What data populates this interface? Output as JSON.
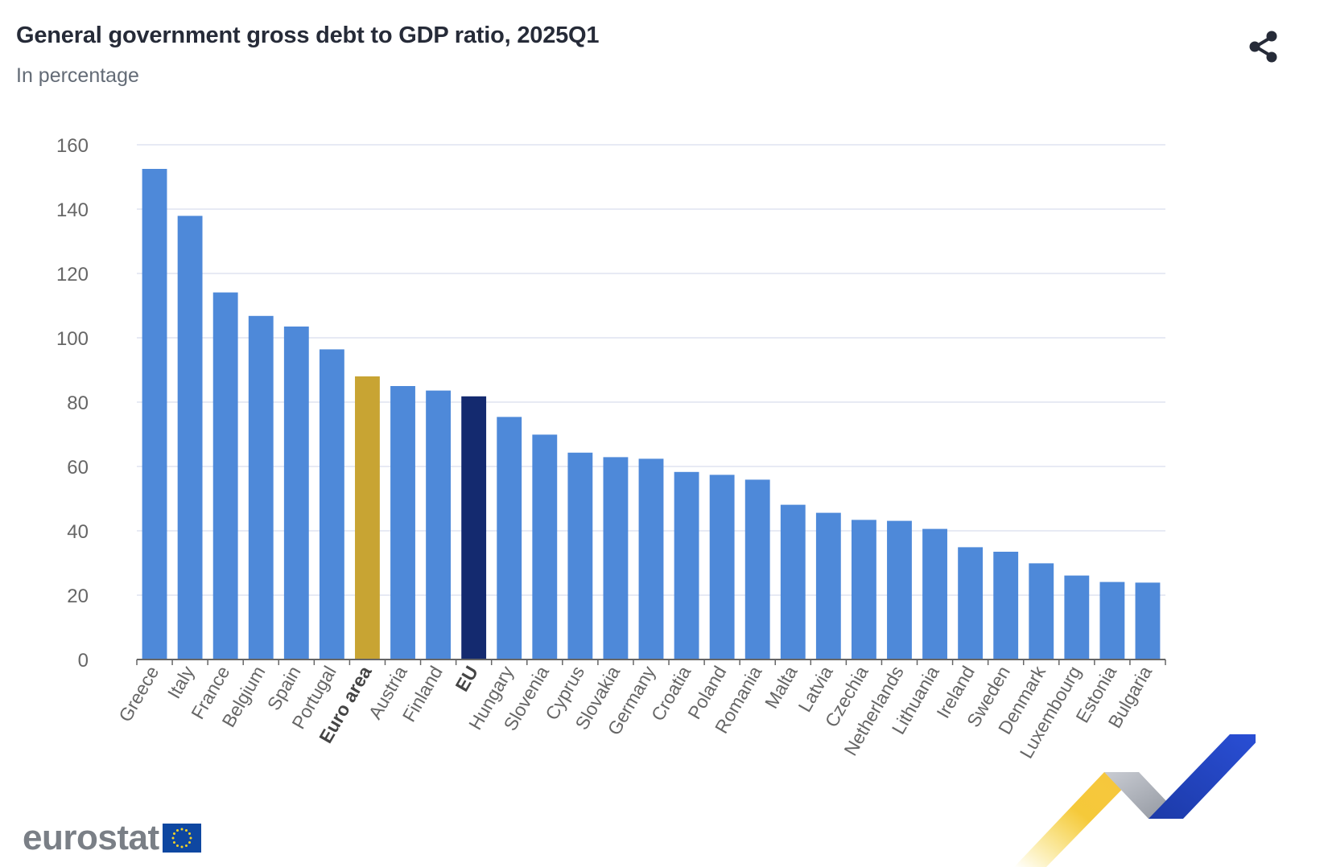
{
  "header": {
    "title": "General government gross debt to GDP ratio, 2025Q1",
    "subtitle": "In percentage"
  },
  "share": {
    "icon": "share-icon"
  },
  "footer": {
    "logo_text": "eurostat",
    "flag_icon": "eu-flag-icon",
    "decoration": "ribbon-graphic"
  },
  "colors": {
    "country": "#4e89d9",
    "euro_area": "#c8a433",
    "eu": "#142a6f",
    "grid": "#dfe3f0",
    "axis": "#666666",
    "tick_text": "#666666"
  },
  "chart_data": {
    "type": "bar",
    "title": "General government gross debt to GDP ratio, 2025Q1",
    "subtitle": "In percentage",
    "xlabel": "",
    "ylabel": "",
    "ylim": [
      0,
      160
    ],
    "yticks": [
      0,
      20,
      40,
      60,
      80,
      100,
      120,
      140,
      160
    ],
    "grid": true,
    "legend": "none",
    "categories": [
      "Greece",
      "Italy",
      "France",
      "Belgium",
      "Spain",
      "Portugal",
      "Euro area",
      "Austria",
      "Finland",
      "EU",
      "Hungary",
      "Slovenia",
      "Cyprus",
      "Slovakia",
      "Germany",
      "Croatia",
      "Poland",
      "Romania",
      "Malta",
      "Latvia",
      "Czechia",
      "Netherlands",
      "Lithuania",
      "Ireland",
      "Sweden",
      "Denmark",
      "Luxembourg",
      "Estonia",
      "Bulgaria"
    ],
    "values": [
      152.5,
      137.9,
      114.1,
      106.8,
      103.5,
      96.4,
      88.0,
      85.0,
      83.6,
      81.8,
      75.4,
      69.9,
      64.3,
      62.9,
      62.4,
      58.3,
      57.4,
      55.9,
      48.1,
      45.6,
      43.4,
      43.1,
      40.6,
      34.9,
      33.5,
      29.9,
      26.1,
      24.1,
      23.9
    ],
    "highlights": {
      "Euro area": "euro_area",
      "EU": "eu"
    }
  }
}
